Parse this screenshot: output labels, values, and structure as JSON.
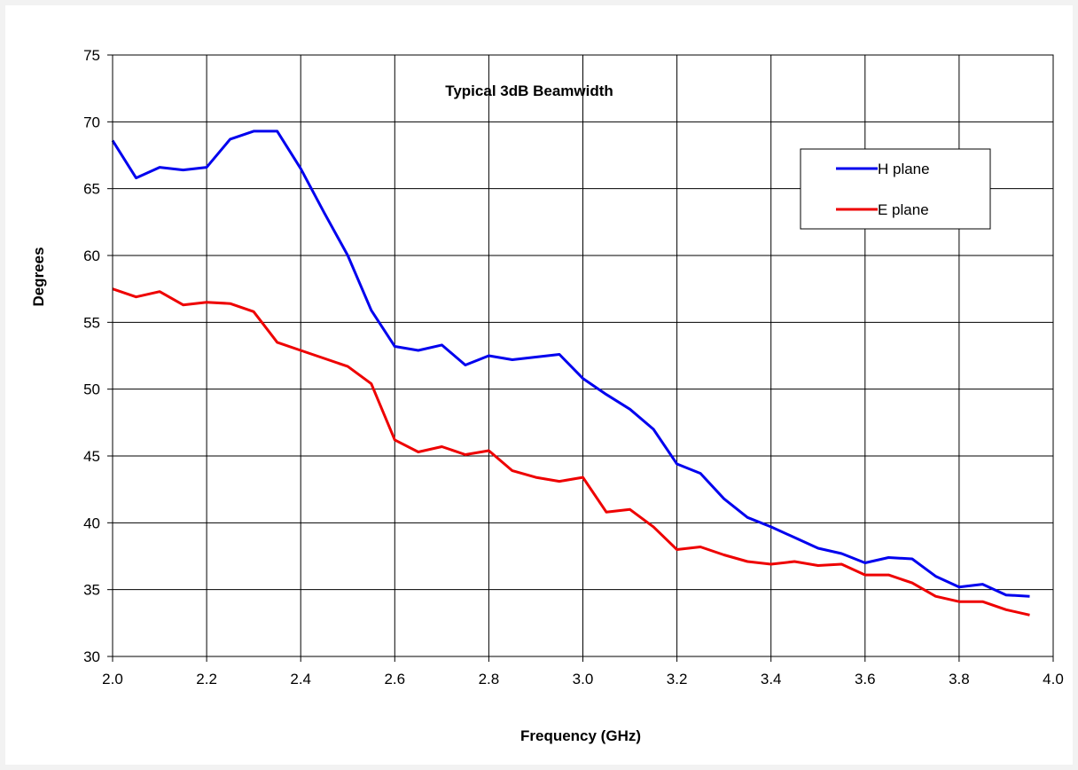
{
  "chart_data": {
    "type": "line",
    "title": "Typical 3dB Beamwidth",
    "xlabel": "Frequency (GHz)",
    "ylabel": "Degrees",
    "xlim": [
      2.0,
      4.0
    ],
    "ylim": [
      30,
      75
    ],
    "x_ticks": [
      "2.0",
      "2.2",
      "2.4",
      "2.6",
      "2.8",
      "3.0",
      "3.2",
      "3.4",
      "3.6",
      "3.8",
      "4.0"
    ],
    "y_ticks": [
      "30",
      "35",
      "40",
      "45",
      "50",
      "55",
      "60",
      "65",
      "70",
      "75"
    ],
    "grid": true,
    "legend_position": "top-right",
    "x": [
      2.0,
      2.05,
      2.1,
      2.15,
      2.2,
      2.25,
      2.3,
      2.35,
      2.4,
      2.45,
      2.5,
      2.55,
      2.6,
      2.65,
      2.7,
      2.75,
      2.8,
      2.85,
      2.9,
      2.95,
      3.0,
      3.05,
      3.1,
      3.15,
      3.2,
      3.25,
      3.3,
      3.35,
      3.4,
      3.45,
      3.5,
      3.55,
      3.6,
      3.65,
      3.7,
      3.75,
      3.8,
      3.85,
      3.9,
      3.95
    ],
    "series": [
      {
        "name": "H plane",
        "color": "#0000ee",
        "values": [
          68.6,
          65.8,
          66.6,
          66.4,
          66.6,
          68.7,
          69.3,
          69.3,
          66.5,
          63.2,
          60.0,
          55.9,
          53.2,
          52.9,
          53.3,
          51.8,
          52.5,
          52.2,
          52.4,
          52.6,
          50.8,
          49.6,
          48.5,
          47.0,
          44.4,
          43.7,
          41.8,
          40.4,
          39.7,
          38.9,
          38.1,
          37.7,
          37.0,
          37.4,
          37.3,
          36.0,
          35.2,
          35.4,
          34.6,
          34.5
        ]
      },
      {
        "name": "E plane",
        "color": "#ee0000",
        "values": [
          57.5,
          56.9,
          57.3,
          56.3,
          56.5,
          56.4,
          55.8,
          53.5,
          52.9,
          52.3,
          51.7,
          50.4,
          46.2,
          45.3,
          45.7,
          45.1,
          45.4,
          43.9,
          43.4,
          43.1,
          43.4,
          40.8,
          41.0,
          39.7,
          38.0,
          38.2,
          37.6,
          37.1,
          36.9,
          37.1,
          36.8,
          36.9,
          36.1,
          36.1,
          35.5,
          34.5,
          34.1,
          34.1,
          33.5,
          33.1
        ]
      }
    ]
  }
}
